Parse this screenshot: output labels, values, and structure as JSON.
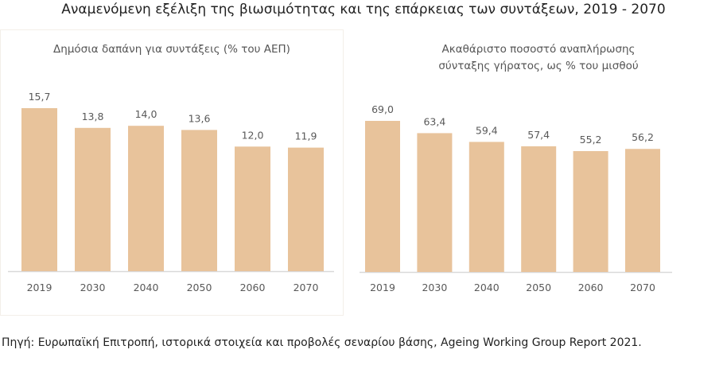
{
  "title": "Αναμενόμενη εξέλιξη της βιωσιμότητας και της επάρκειας των συντάξεων, 2019 - 2070",
  "source": "Πηγή: Ευρωπαϊκή Επιτροπή, ιστορικά στοιχεία και προβολές σεναρίου βάσης, Ageing Working Group Report 2021.",
  "colors": {
    "bar": "#E8C39B",
    "axis": "#d9d9d9",
    "text": "#595959"
  },
  "chart_data": [
    {
      "type": "bar",
      "title": "Δημόσια δαπάνη για συντάξεις (% του ΑΕΠ)",
      "categories": [
        "2019",
        "2030",
        "2040",
        "2050",
        "2060",
        "2070"
      ],
      "values": [
        15.7,
        13.8,
        14.0,
        13.6,
        12.0,
        11.9
      ],
      "labels": [
        "15,7",
        "13,8",
        "14,0",
        "13,6",
        "12,0",
        "11,9"
      ],
      "ylim": [
        0,
        15.7
      ],
      "grid": false
    },
    {
      "type": "bar",
      "title": "Ακαθάριστο ποσοστό αναπλήρωσης σύνταξης γήρατος, ως % του μισθού",
      "title_lines": [
        "Ακαθάριστο ποσοστό αναπλήρωσης",
        "σύνταξης γήρατος, ως % του μισθού"
      ],
      "categories": [
        "2019",
        "2030",
        "2040",
        "2050",
        "2060",
        "2070"
      ],
      "values": [
        69.0,
        63.4,
        59.4,
        57.4,
        55.2,
        56.2
      ],
      "labels": [
        "69,0",
        "63,4",
        "59,4",
        "57,4",
        "55,2",
        "56,2"
      ],
      "ylim": [
        0,
        69.0
      ],
      "grid": false
    }
  ]
}
